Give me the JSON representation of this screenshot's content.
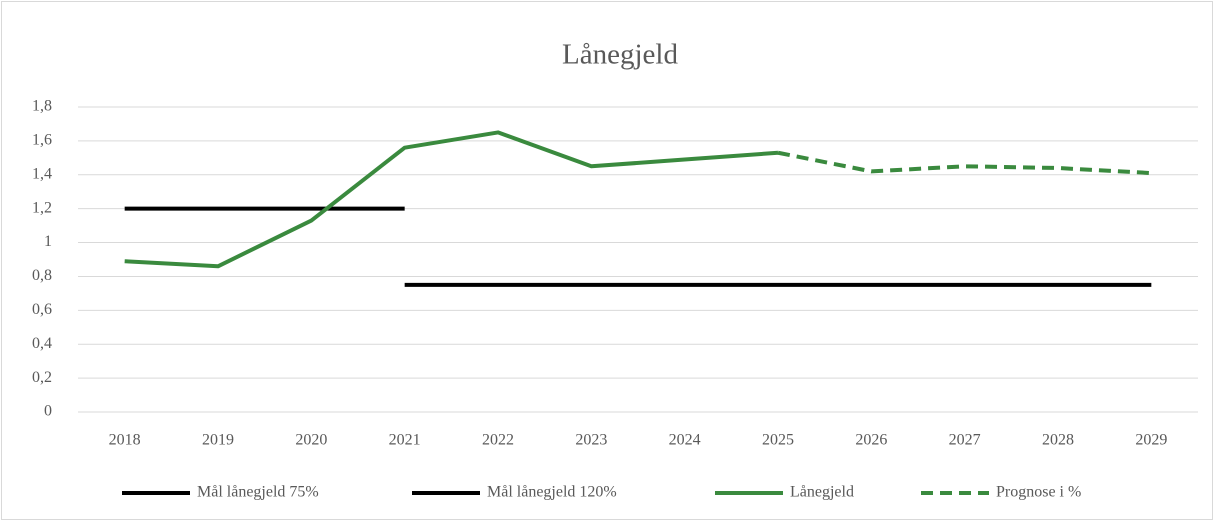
{
  "chart_data": {
    "type": "line",
    "title": "Lånegjeld",
    "categories": [
      "2018",
      "2019",
      "2020",
      "2021",
      "2022",
      "2023",
      "2024",
      "2025",
      "2026",
      "2027",
      "2028",
      "2029"
    ],
    "series": [
      {
        "name": "Mål lånegjeld 75%",
        "color": "#000000",
        "dashed": false,
        "values": [
          null,
          null,
          null,
          0.75,
          0.75,
          0.75,
          0.75,
          0.75,
          0.75,
          0.75,
          0.75,
          0.75
        ]
      },
      {
        "name": "Mål lånegjeld 120%",
        "color": "#000000",
        "dashed": false,
        "values": [
          1.2,
          1.2,
          1.2,
          1.2,
          null,
          null,
          null,
          null,
          null,
          null,
          null,
          null
        ]
      },
      {
        "name": "Lånegjeld",
        "color": "#3a8a3e",
        "dashed": false,
        "values": [
          0.89,
          0.86,
          1.13,
          1.56,
          1.65,
          1.45,
          1.49,
          1.53,
          null,
          null,
          null,
          null
        ]
      },
      {
        "name": "Prognose i %",
        "color": "#3a8a3e",
        "dashed": true,
        "values": [
          null,
          null,
          null,
          null,
          null,
          null,
          null,
          1.53,
          1.42,
          1.45,
          1.44,
          1.41
        ]
      }
    ],
    "ylim": [
      0,
      1.8
    ],
    "yticks": [
      0,
      {
        "value": 0.2,
        "label": "0,2"
      },
      {
        "value": 0.4,
        "label": "0,4"
      },
      {
        "value": 0.6,
        "label": "0,6"
      },
      {
        "value": 0.8,
        "label": "0,8"
      },
      1,
      {
        "value": 1.2,
        "label": "1,2"
      },
      {
        "value": 1.4,
        "label": "1,4"
      },
      {
        "value": 1.6,
        "label": "1,6"
      },
      {
        "value": 1.8,
        "label": "1,8"
      }
    ],
    "grid": true,
    "legend": "bottom"
  }
}
